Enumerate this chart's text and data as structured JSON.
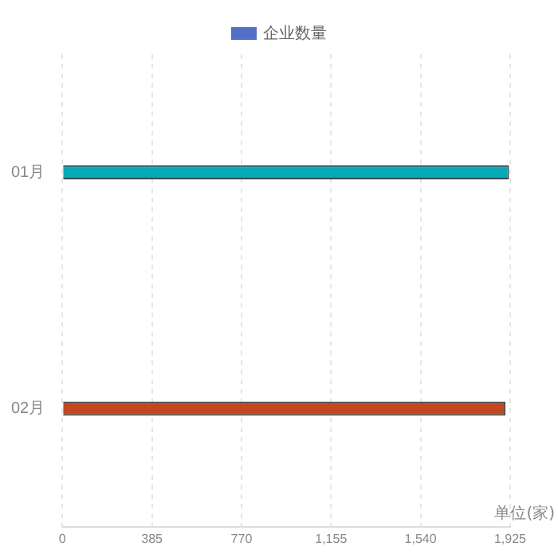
{
  "chart_data": {
    "type": "bar",
    "orientation": "horizontal",
    "categories": [
      "01月",
      "02月"
    ],
    "series": [
      {
        "name": "企业数量",
        "color": "#5470c6",
        "colors": [
          "#06a9b8",
          "#c4471f"
        ],
        "values": [
          1920,
          1905
        ]
      }
    ],
    "xlim": [
      0,
      1925
    ],
    "xticks": [
      0,
      {
        "value": 385,
        "label": "385"
      },
      {
        "value": 770,
        "label": "770"
      },
      {
        "value": 1155,
        "label": "1,155"
      },
      {
        "value": 1540,
        "label": "1,540"
      },
      {
        "value": 1925,
        "label": "1,925"
      }
    ],
    "xlabel": "单位(家)",
    "grid": "x",
    "legend": "top"
  }
}
